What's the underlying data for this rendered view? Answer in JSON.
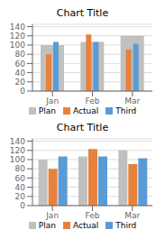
{
  "chart_data": [
    {
      "type": "bar",
      "title": "Chart Title",
      "categories": [
        "Jan",
        "Feb",
        "Mar"
      ],
      "series": [
        {
          "name": "Plan",
          "color": "#c0c0c0",
          "values": [
            100,
            107,
            120
          ]
        },
        {
          "name": "Actual",
          "color": "#e8813a",
          "values": [
            80,
            123,
            90
          ]
        },
        {
          "name": "Third",
          "color": "#5b9bd5",
          "values": [
            107,
            107,
            103
          ]
        }
      ],
      "ylim": [
        0,
        145
      ],
      "yticks": [
        0,
        20,
        40,
        60,
        80,
        100,
        120,
        140
      ],
      "grid": true,
      "legend": "bottom"
    },
    {
      "type": "bar",
      "title": "Chart Title",
      "categories": [
        "Jan",
        "Feb",
        "Mar"
      ],
      "series": [
        {
          "name": "Plan",
          "color": "#c0c0c0",
          "values": [
            100,
            107,
            120
          ]
        },
        {
          "name": "Actual",
          "color": "#e8813a",
          "values": [
            80,
            123,
            90
          ]
        },
        {
          "name": "Third",
          "color": "#5b9bd5",
          "values": [
            107,
            107,
            103
          ]
        }
      ],
      "ylim": [
        0,
        145
      ],
      "yticks": [
        0,
        20,
        40,
        60,
        80,
        100,
        120,
        140
      ],
      "grid": true,
      "legend": "bottom"
    }
  ]
}
